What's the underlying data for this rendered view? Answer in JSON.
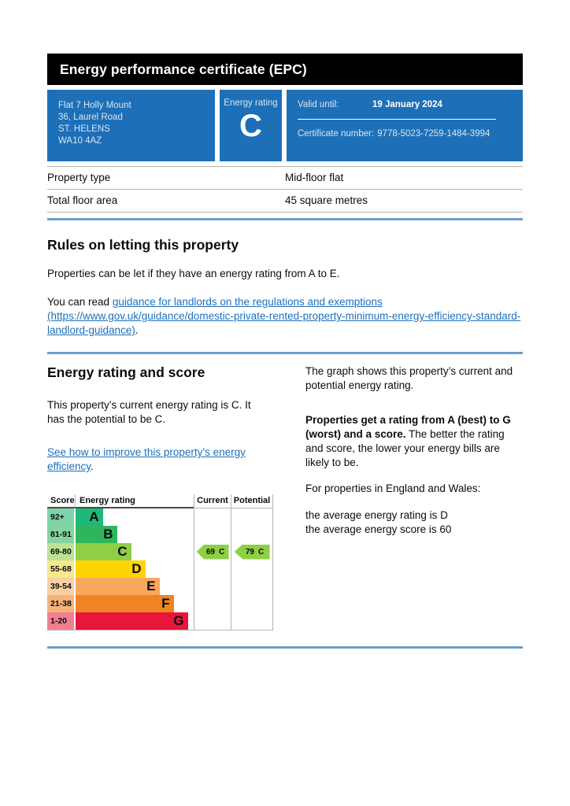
{
  "header": {
    "title": "Energy performance certificate (EPC)"
  },
  "summary": {
    "address_lines": [
      "Flat 7 Holly Mount",
      "36, Laurel Road",
      "ST. HELENS",
      "WA10 4AZ"
    ],
    "energy_rating_label": "Energy rating",
    "energy_rating_letter": "C",
    "valid_until_label": "Valid until:",
    "valid_until_value": "19 January 2024",
    "certificate_number_label": "Certificate number:",
    "certificate_number_value": "9778-5023-7259-1484-3994",
    "panel_color": "#1d70b8"
  },
  "property_table": {
    "rows": [
      {
        "label": "Property type",
        "value": "Mid-floor flat"
      },
      {
        "label": "Total floor area",
        "value": "45 square metres"
      }
    ]
  },
  "letting_rules": {
    "heading": "Rules on letting this property",
    "paragraph1": "Properties can be let if they have an energy rating from A to E.",
    "paragraph2_prefix": "You can read ",
    "link_text": "guidance for landlords on the regulations and exemptions (https://www.gov.uk/guidance/domestic-private-rented-property-minimum-energy-efficiency-standard-landlord-guidance)",
    "paragraph2_suffix": "."
  },
  "rating_section": {
    "heading": "Energy rating and score",
    "paragraph1": "This property’s current energy rating is C. It has the potential to be C.",
    "improve_link_text": "See how to improve this property’s energy efficiency",
    "improve_link_suffix": ".",
    "right_paragraph1": "The graph shows this property’s current and potential energy rating.",
    "right_paragraph2_bold": "Properties get a rating from A (best) to G (worst) and a score.",
    "right_paragraph2_rest": " The better the rating and score, the lower your energy bills are likely to be.",
    "right_paragraph3": "For properties in England and Wales:",
    "right_line1": "the average energy rating is D",
    "right_line2": "the average energy score is 60"
  },
  "chart_data": {
    "type": "bar",
    "title": "Energy rating and score graph",
    "columns": {
      "score": "Score",
      "rating": "Energy rating",
      "current": "Current",
      "potential": "Potential"
    },
    "bands": [
      {
        "score_range": "92+",
        "letter": "A",
        "width_pct": 23,
        "color": "#1cb978",
        "tint": "#7fd3ab"
      },
      {
        "score_range": "81-91",
        "letter": "B",
        "width_pct": 35,
        "color": "#2fb65c",
        "tint": "#83d49e"
      },
      {
        "score_range": "69-80",
        "letter": "C",
        "width_pct": 47,
        "color": "#8ecf46",
        "tint": "#bce294"
      },
      {
        "score_range": "55-68",
        "letter": "D",
        "width_pct": 59,
        "color": "#ffd500",
        "tint": "#f6e88e"
      },
      {
        "score_range": "39-54",
        "letter": "E",
        "width_pct": 71,
        "color": "#f9a65f",
        "tint": "#fbcfa3"
      },
      {
        "score_range": "21-38",
        "letter": "F",
        "width_pct": 83,
        "color": "#ee8423",
        "tint": "#f4b27d"
      },
      {
        "score_range": "1-20",
        "letter": "G",
        "width_pct": 95,
        "color": "#e9153b",
        "tint": "#f27e92"
      }
    ],
    "current": {
      "score": "69",
      "letter": "C",
      "color": "#8ecf46"
    },
    "potential": {
      "score": "79",
      "letter": "C",
      "color": "#8ecf46"
    }
  }
}
